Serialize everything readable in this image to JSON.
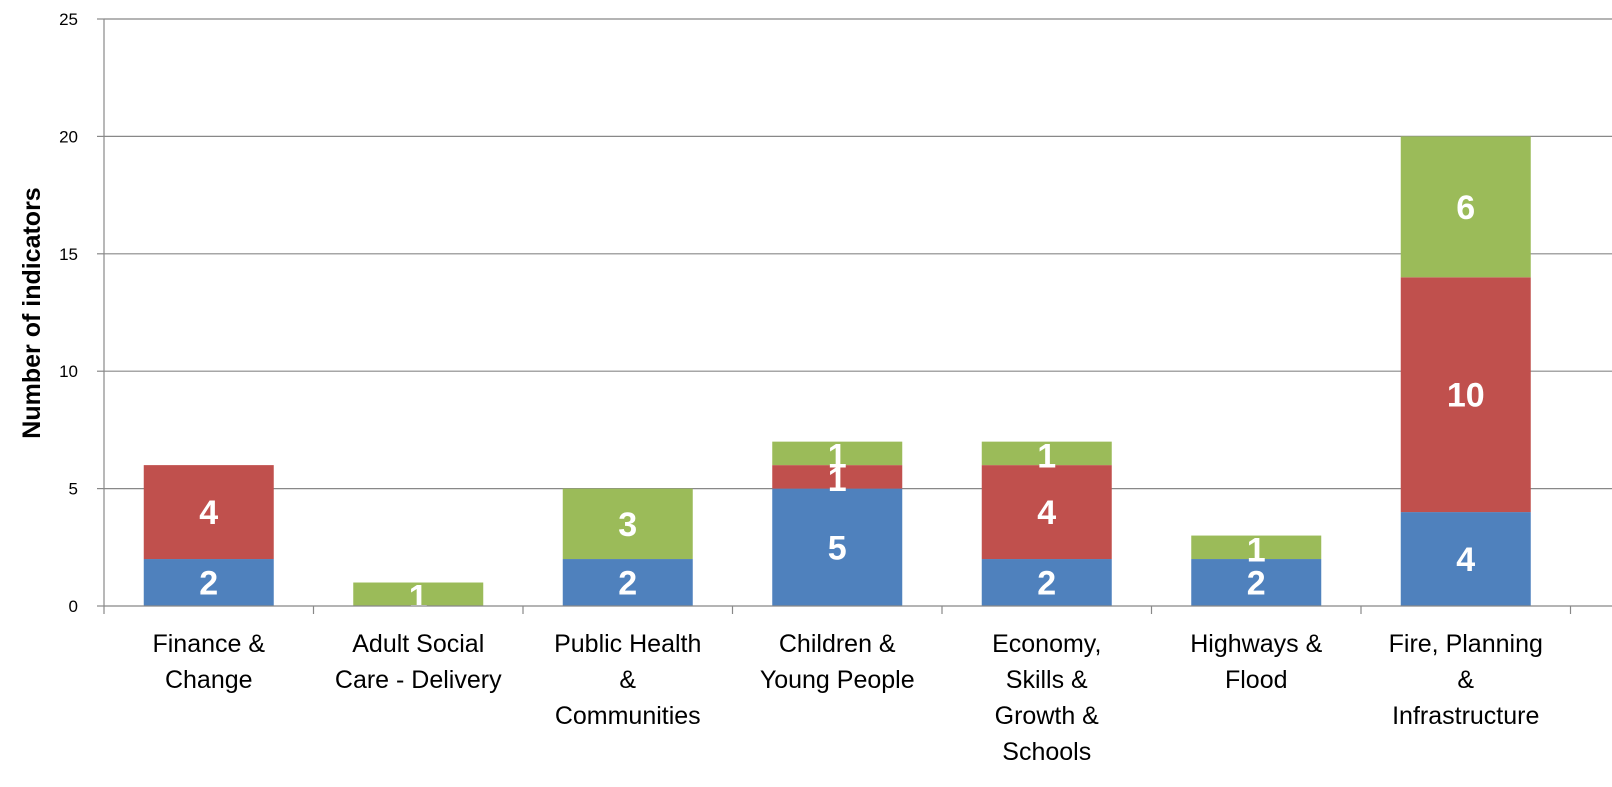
{
  "chart_data": {
    "type": "bar",
    "stacked": true,
    "title": "",
    "xlabel": "",
    "ylabel": "Number of indicators",
    "ylim": [
      0,
      25
    ],
    "yticks": [
      0,
      5,
      10,
      15,
      20,
      25
    ],
    "grid": true,
    "legend": "none",
    "categories": [
      [
        "Finance  &",
        "Change"
      ],
      [
        "Adult Social",
        "Care - Delivery"
      ],
      [
        "Public Health",
        "&",
        "Communities"
      ],
      [
        "Children &",
        "Young People"
      ],
      [
        "Economy,",
        "Skills &",
        "Growth &",
        "Schools"
      ],
      [
        "Highways &",
        "Flood"
      ],
      [
        "Fire, Planning",
        "&",
        "Infrastructure"
      ]
    ],
    "series": [
      {
        "color": "#4F81BD",
        "values": [
          2,
          0,
          2,
          5,
          2,
          2,
          4
        ],
        "labels": [
          "2",
          "",
          "2",
          "5",
          "2",
          "2",
          "4"
        ]
      },
      {
        "color": "#C0504D",
        "values": [
          4,
          0,
          0,
          1,
          4,
          0,
          10
        ],
        "labels": [
          "4",
          "",
          "",
          "1",
          "4",
          "",
          "10"
        ]
      },
      {
        "color": "#9BBB59",
        "values": [
          0,
          1,
          3,
          1,
          1,
          1,
          6
        ],
        "labels": [
          "",
          "1",
          "3",
          "1",
          "1",
          "1",
          "6"
        ]
      }
    ]
  }
}
